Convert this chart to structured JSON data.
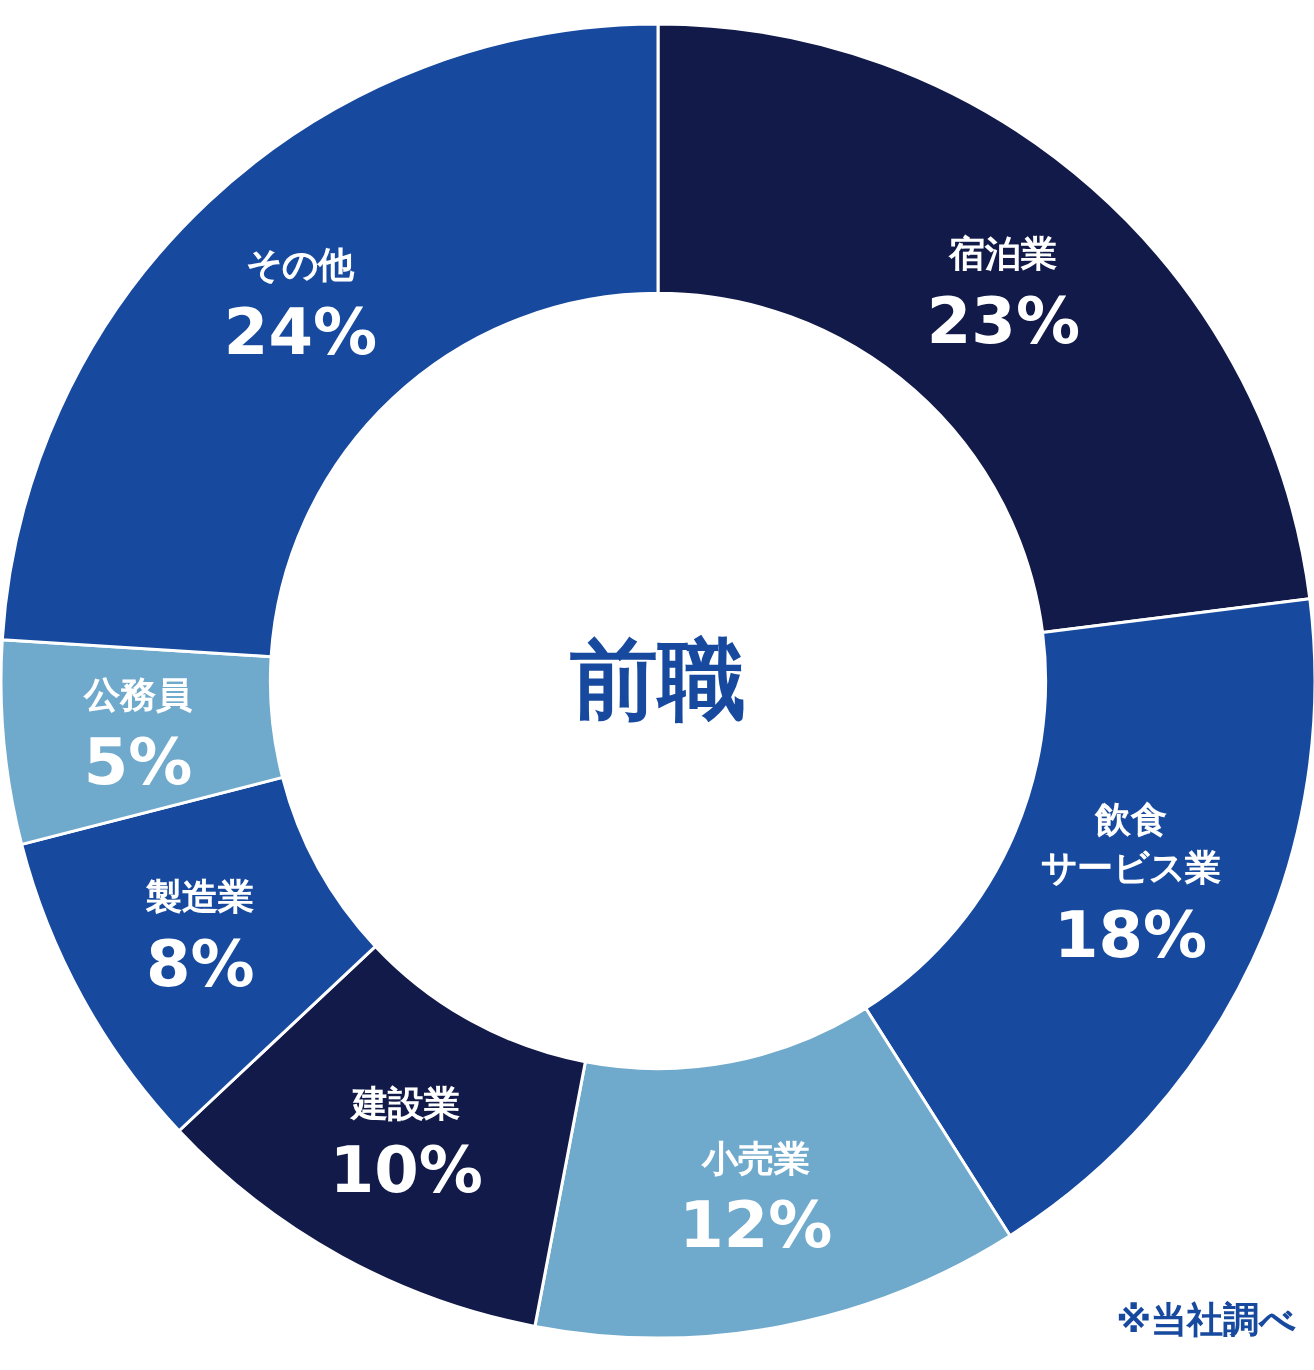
{
  "chart_data": {
    "type": "donut",
    "title": "前職",
    "categories": [
      "宿泊業",
      "飲食サービス業",
      "小売業",
      "建設業",
      "製造業",
      "公務員",
      "その他"
    ],
    "values": [
      23,
      18,
      12,
      10,
      8,
      5,
      24
    ],
    "value_labels": [
      "23%",
      "18%",
      "12%",
      "10%",
      "8%",
      "5%",
      "24%"
    ],
    "colors": [
      "#111a48",
      "#174a9e",
      "#6fa9cb",
      "#111a48",
      "#174a9e",
      "#6fa9cb",
      "#174a9e"
    ],
    "annotations": [
      "※当社調べ"
    ]
  }
}
